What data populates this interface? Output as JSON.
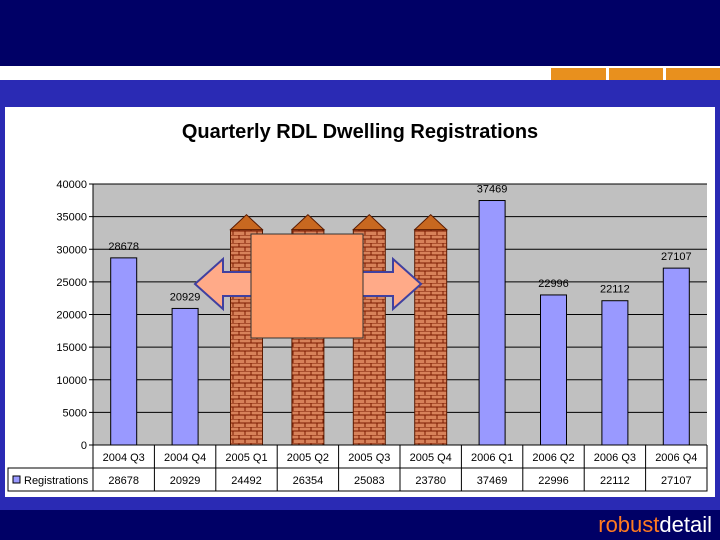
{
  "brand": {
    "part1": "robust",
    "part2": "detail"
  },
  "colors": {
    "bar": "#9999ff",
    "plot_bg": "#c0c0c0",
    "brick": "#d8825a",
    "overlay": "#ff9966",
    "arrow": "#ffaa88"
  },
  "chart_data": {
    "type": "bar",
    "title": "Quarterly RDL Dwelling Registrations",
    "categories": [
      "2004 Q3",
      "2004 Q4",
      "2005 Q1",
      "2005 Q2",
      "2005 Q3",
      "2005 Q4",
      "2006 Q1",
      "2006 Q2",
      "2006 Q3",
      "2006 Q4"
    ],
    "series": [
      {
        "name": "Registrations",
        "values": [
          28678,
          20929,
          24492,
          26354,
          25083,
          23780,
          37469,
          22996,
          22112,
          27107
        ]
      }
    ],
    "yticks": [
      0,
      5000,
      10000,
      15000,
      20000,
      25000,
      30000,
      35000,
      40000
    ],
    "ylim": [
      0,
      40000
    ],
    "grid": true,
    "legend": "data-table"
  }
}
